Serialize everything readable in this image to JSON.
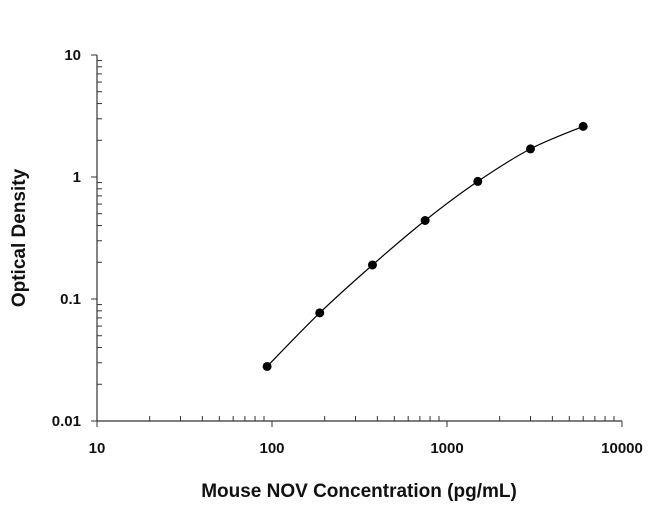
{
  "chart_data": {
    "type": "scatter",
    "title": "",
    "xlabel": "Mouse NOV Concentration (pg/mL)",
    "ylabel": "Optical Density",
    "xscale": "log",
    "yscale": "log",
    "xlim": [
      10,
      10000
    ],
    "ylim": [
      0.01,
      10
    ],
    "xticks": [
      "10",
      "100",
      "1000",
      "10000"
    ],
    "yticks": [
      "0.01",
      "0.1",
      "1",
      "10"
    ],
    "grid": false,
    "legend": "none",
    "series": [
      {
        "marker": "filled-circle",
        "color": "#000000",
        "fit_line": "smooth-curve",
        "points": [
          {
            "x": 93.75,
            "y": 0.028
          },
          {
            "x": 187.5,
            "y": 0.077
          },
          {
            "x": 375,
            "y": 0.19
          },
          {
            "x": 750,
            "y": 0.44
          },
          {
            "x": 1500,
            "y": 0.92
          },
          {
            "x": 3000,
            "y": 1.7
          },
          {
            "x": 6000,
            "y": 2.6
          }
        ]
      }
    ]
  }
}
